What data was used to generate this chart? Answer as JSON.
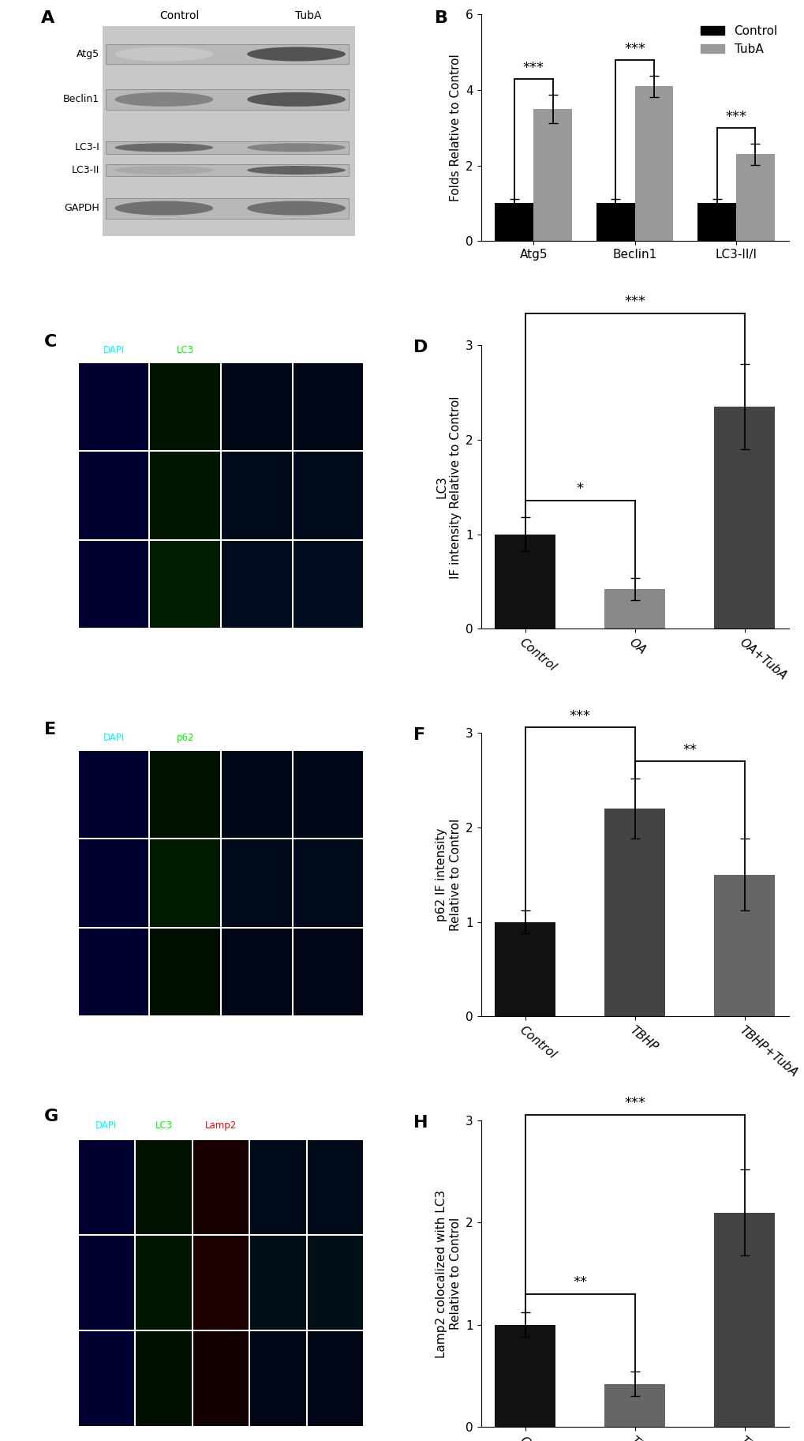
{
  "panel_B": {
    "ylabel": "Folds Relative to Control",
    "groups": [
      "Atg5",
      "Beclin1",
      "LC3-II/I"
    ],
    "control_vals": [
      1.0,
      1.0,
      1.0
    ],
    "tuba_vals": [
      3.5,
      4.1,
      2.3
    ],
    "control_err": [
      0.12,
      0.12,
      0.12
    ],
    "tuba_err": [
      0.38,
      0.28,
      0.28
    ],
    "ylim": [
      0,
      6
    ],
    "yticks": [
      0,
      2,
      4,
      6
    ],
    "control_color": "#000000",
    "tuba_color": "#999999",
    "sig_labels": [
      "***",
      "***",
      "***"
    ],
    "bar_width": 0.38
  },
  "panel_D": {
    "ylabel": "LC3\nIF intensity Relative to Control",
    "groups": [
      "Control",
      "OA",
      "OA+TubA"
    ],
    "vals": [
      1.0,
      0.42,
      2.35
    ],
    "errs": [
      0.18,
      0.12,
      0.45
    ],
    "ylim": [
      0,
      3
    ],
    "yticks": [
      0,
      1,
      2,
      3
    ],
    "bar_colors": [
      "#111111",
      "#888888",
      "#444444"
    ],
    "sig_labels": [
      "*",
      "***"
    ],
    "sig_pairs": [
      [
        0,
        1,
        "*"
      ],
      [
        0,
        2,
        "***"
      ]
    ],
    "bar_width": 0.55,
    "tick_rotation": -40,
    "tick_ha": "left"
  },
  "panel_F": {
    "ylabel": "p62 IF intensity\nRelative to Control",
    "groups": [
      "Control",
      "TBHP",
      "TBHP+TubA"
    ],
    "vals": [
      1.0,
      2.2,
      1.5
    ],
    "errs": [
      0.12,
      0.32,
      0.38
    ],
    "ylim": [
      0,
      3
    ],
    "yticks": [
      0,
      1,
      2,
      3
    ],
    "bar_colors": [
      "#111111",
      "#444444",
      "#666666"
    ],
    "sig_labels": [
      "***",
      "**"
    ],
    "sig_pairs": [
      [
        0,
        1,
        "***"
      ],
      [
        1,
        2,
        "**"
      ]
    ],
    "bar_width": 0.55,
    "tick_rotation": -40,
    "tick_ha": "left"
  },
  "panel_H": {
    "ylabel": "Lamp2 colocalized with LC3\nRelative to Control",
    "groups": [
      "Control",
      "TBHP",
      "TBHP+TubA"
    ],
    "vals": [
      1.0,
      0.42,
      2.1
    ],
    "errs": [
      0.12,
      0.12,
      0.42
    ],
    "ylim": [
      0,
      3
    ],
    "yticks": [
      0,
      1,
      2,
      3
    ],
    "bar_colors": [
      "#111111",
      "#666666",
      "#444444"
    ],
    "sig_labels": [
      "**",
      "***"
    ],
    "sig_pairs": [
      [
        0,
        1,
        "**"
      ],
      [
        0,
        2,
        "***"
      ]
    ],
    "bar_width": 0.55,
    "tick_rotation": -40,
    "tick_ha": "left"
  },
  "label_fontsize": 16,
  "tick_fontsize": 11,
  "axis_label_fontsize": 11,
  "legend_fontsize": 11,
  "sig_fontsize": 13,
  "bg_color": "#ffffff",
  "panel_labels": [
    "A",
    "B",
    "C",
    "D",
    "E",
    "F",
    "G",
    "H"
  ]
}
